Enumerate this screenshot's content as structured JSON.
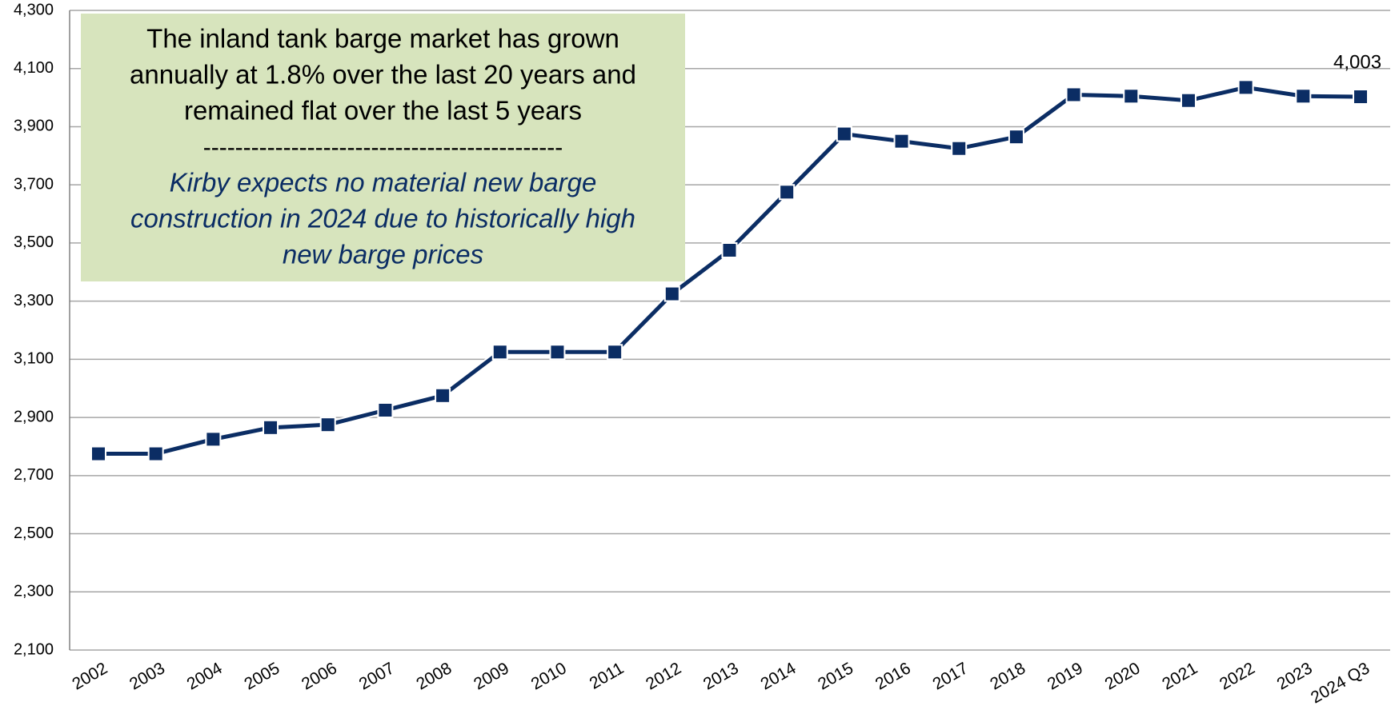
{
  "chart_data": {
    "type": "line",
    "categories": [
      "2002",
      "2003",
      "2004",
      "2005",
      "2006",
      "2007",
      "2008",
      "2009",
      "2010",
      "2011",
      "2012",
      "2013",
      "2014",
      "2015",
      "2016",
      "2017",
      "2018",
      "2019",
      "2020",
      "2021",
      "2022",
      "2023",
      "2024 Q3"
    ],
    "series": [
      {
        "color": "#0b2d64",
        "values": [
          2775,
          2775,
          2825,
          2865,
          2875,
          2925,
          2975,
          3125,
          3125,
          3125,
          3325,
          3475,
          3675,
          3875,
          3850,
          3825,
          3865,
          4010,
          4005,
          3990,
          4035,
          4005,
          4003
        ],
        "value_labels": [
          null,
          null,
          null,
          null,
          null,
          null,
          null,
          null,
          null,
          null,
          null,
          null,
          null,
          null,
          null,
          null,
          null,
          null,
          null,
          null,
          null,
          null,
          "4,003"
        ]
      }
    ],
    "ylim": [
      2100,
      4300
    ],
    "yticks": [
      {
        "value": 2100,
        "label": "2,100"
      },
      {
        "value": 2300,
        "label": "2,300"
      },
      {
        "value": 2500,
        "label": "2,500"
      },
      {
        "value": 2700,
        "label": "2,700"
      },
      {
        "value": 2900,
        "label": "2,900"
      },
      {
        "value": 3100,
        "label": "3,100"
      },
      {
        "value": 3300,
        "label": "3,300"
      },
      {
        "value": 3500,
        "label": "3,500"
      },
      {
        "value": 3700,
        "label": "3,700"
      },
      {
        "value": 3900,
        "label": "3,900"
      },
      {
        "value": 4100,
        "label": "4,100"
      },
      {
        "value": 4300,
        "label": "4,300"
      }
    ],
    "grid": true,
    "annotation": {
      "lines": [
        "The inland tank barge market has grown",
        "annually at 1.8% over the last 20 years and",
        "remained flat over the last 5 years"
      ],
      "separator": "---------------------------------------------",
      "note_lines": [
        "Kirby expects no material new barge",
        "construction in 2024 due to historically high",
        "new barge prices"
      ]
    }
  }
}
